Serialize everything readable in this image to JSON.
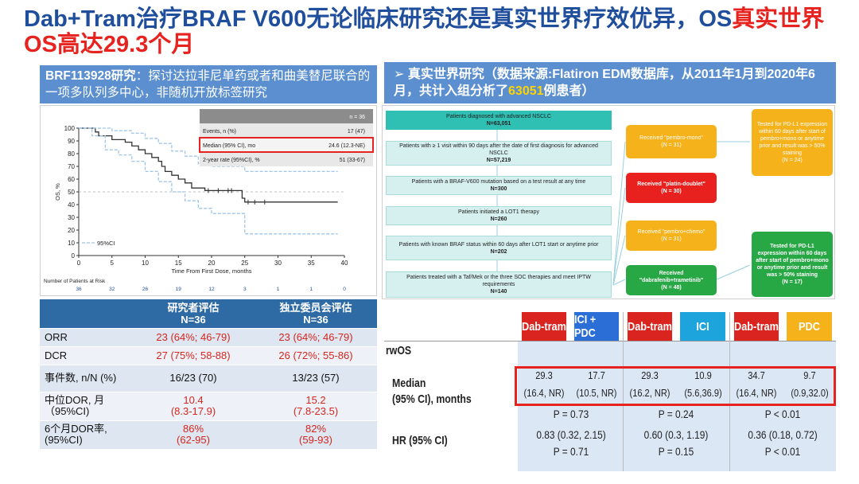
{
  "title": {
    "part1": "Dab+Tram治疗BRAF V600无论临床研究还是真实世界疗效优异，OS",
    "part2": "真实世界OS高达29.3个月"
  },
  "left_header": {
    "study": "BRF113928研究",
    "desc": "：探讨达拉非尼单药或者和曲美替尼联合的一项多队列多中心，非随机开放标签研究"
  },
  "right_header": {
    "arrow": "➢",
    "text1": "真实世界研究（数据来源:Flatiron EDM数据库，从2011年1月到2020年6月，共计入组分析了",
    "highlight": "63051",
    "text2": "例患者）"
  },
  "km_inset": {
    "n": "n = 36",
    "rows": [
      {
        "label": "Events, n (%)",
        "value": "17 (47)"
      },
      {
        "label": "Median (95% CI), mo",
        "value": "24.6 (12.3-NE)"
      },
      {
        "label": "2-year rate (95%CI), %",
        "value": "51 (33-67)"
      }
    ]
  },
  "chart_data": {
    "type": "line",
    "xlabel": "Time From First Dose, months",
    "ylabel": "OS, %",
    "xlim": [
      0,
      40
    ],
    "ylim": [
      0,
      100
    ],
    "xticks": [
      "0",
      "5",
      "10",
      "15",
      "20",
      "25",
      "30",
      "35",
      "40"
    ],
    "yticks": [
      "0",
      "10",
      "20",
      "30",
      "40",
      "50",
      "60",
      "70",
      "80",
      "90",
      "100"
    ],
    "legend": "95%CI",
    "risk_label": "Number of Patients at Risk",
    "at_risk": [
      "36",
      "32",
      "26",
      "19",
      "12",
      "3",
      "1",
      "1",
      "0"
    ],
    "series": [
      {
        "values": [
          [
            0,
            100
          ],
          [
            2,
            100
          ],
          [
            2.5,
            97
          ],
          [
            3,
            94
          ],
          [
            4,
            94
          ],
          [
            5,
            91
          ],
          [
            7,
            89
          ],
          [
            8,
            86
          ],
          [
            9,
            83
          ],
          [
            10,
            80
          ],
          [
            11,
            77
          ],
          [
            12,
            74
          ],
          [
            12.5,
            70
          ],
          [
            13,
            66
          ],
          [
            14,
            63
          ],
          [
            15,
            60
          ],
          [
            16,
            57
          ],
          [
            17,
            53
          ],
          [
            18,
            53
          ],
          [
            19,
            51
          ],
          [
            24,
            51
          ],
          [
            24.6,
            45
          ],
          [
            25,
            42
          ],
          [
            39,
            42
          ]
        ]
      },
      {
        "values": [
          [
            0,
            100
          ],
          [
            3,
            100
          ],
          [
            5,
            98
          ],
          [
            8,
            96
          ],
          [
            10,
            92
          ],
          [
            12,
            88
          ],
          [
            14,
            82
          ],
          [
            16,
            78
          ],
          [
            18,
            72
          ],
          [
            20,
            70
          ],
          [
            24,
            70
          ],
          [
            25,
            66
          ],
          [
            39,
            66
          ]
        ]
      },
      {
        "values": [
          [
            0,
            100
          ],
          [
            2,
            94
          ],
          [
            4,
            83
          ],
          [
            6,
            79
          ],
          [
            8,
            74
          ],
          [
            10,
            66
          ],
          [
            12,
            58
          ],
          [
            14,
            50
          ],
          [
            16,
            43
          ],
          [
            18,
            37
          ],
          [
            20,
            33
          ],
          [
            24,
            33
          ],
          [
            25,
            17
          ],
          [
            39,
            17
          ]
        ]
      }
    ]
  },
  "flow": {
    "boxes": [
      {
        "text": "Patients diagnosed with advanced NSCLC",
        "n": "N=63,051"
      },
      {
        "text": "Patients with ≥ 1 visit within 90 days after the date of first diagnosis for advanced NSCLC",
        "n": "N=57,219"
      },
      {
        "text": "Patients with a BRAF-V600 mutation based on a test result at any time",
        "n": "N=300"
      },
      {
        "text": "Patients initiated a LOT1 therapy",
        "n": "N=260"
      },
      {
        "text": "Patients with known BRAF status within 60 days after LOT1 start or anytime prior",
        "n": "N=202"
      },
      {
        "text": "Patients treated with a Taf/Mek or the three SOC therapies and meet IPTW requirements",
        "n": "N=140"
      }
    ],
    "arms": [
      {
        "text": "Received \"pembro-mono\"",
        "n": "(N = 31)"
      },
      {
        "text": "Received \"platin-doublet\"",
        "n": "(N = 30)"
      },
      {
        "text": "Received \"pembro+chemo\"",
        "n": "(N = 31)"
      },
      {
        "text": "Received \"dabrafenib+trametinib\"",
        "n": "(N = 48)"
      }
    ],
    "notes": [
      {
        "text": "Tested for PD-L1 expression within 60 days after start of pembro+mono or anytime prior and result was > 50% staining",
        "n": "(N = 24)"
      },
      {
        "text": "Tested for PD-L1 expression within 60 days after start of pembro+mono or anytime prior and result was > 50% staining",
        "n": "(N = 17)"
      }
    ]
  },
  "left_table": {
    "headers": [
      "",
      "研究者评估\nN=36",
      "独立委员会评估\nN=36"
    ],
    "rows": [
      {
        "label": "ORR",
        "a": "23 (64%; 46-79)",
        "b": "23 (64%; 46-79)"
      },
      {
        "label": "DCR",
        "a": "27 (75%; 58-88)",
        "b": "26 (72%; 55-86)"
      },
      {
        "label": "事件数, n/N (%)",
        "a": "16/23 (70)",
        "b": "13/23 (57)"
      },
      {
        "label": "中位DOR, 月（95%CI)",
        "a": "10.4\n(8.3-17.9)",
        "b": "15.2\n(7.8-23.5)"
      },
      {
        "label": "6个月DOR率,\n(95%CI)",
        "a": "86%\n(62-95)",
        "b": "82%\n(59-93)"
      }
    ]
  },
  "right_table": {
    "headers": [
      "Dab-tram",
      "ICI + PDC",
      "Dab-tram",
      "ICI",
      "Dab-tram",
      "PDC"
    ],
    "header_colors": [
      "#d9241f",
      "#2b6fd6",
      "#d9241f",
      "#1ea4dc",
      "#d9241f",
      "#f5b21b"
    ],
    "rwos_label": "rwOS",
    "median_label": "Median\n(95% CI), months",
    "hr_label": "HR (95% CI)",
    "medians": [
      "29.3",
      "17.7",
      "29.3",
      "10.9",
      "34.7",
      "9.7"
    ],
    "cis": [
      "(16.4, NR)",
      "(10.5, NR)",
      "(16.2, NR)",
      "(5.6,36.9)",
      "(16.4, NR)",
      "(0.9,32.0)"
    ],
    "p_logrank": [
      "P = 0.73",
      "P = 0.24",
      "P < 0.01"
    ],
    "hr": [
      "0.83 (0.32, 2.15)",
      "0.60 (0.3, 1.19)",
      "0.36 (0.18, 0.72)"
    ],
    "p_hr": [
      "P = 0.71",
      "P = 0.15",
      "P < 0.01"
    ]
  }
}
